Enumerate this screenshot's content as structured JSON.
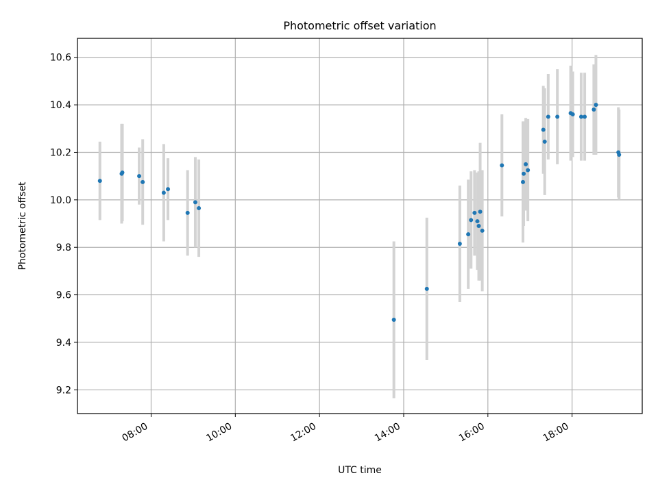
{
  "chart_data": {
    "type": "scatter",
    "title": "Photometric offset variation",
    "xlabel": "UTC time",
    "ylabel": "Photometric offset",
    "x_ticks": [
      "08:00",
      "10:00",
      "12:00",
      "14:00",
      "16:00",
      "18:00"
    ],
    "y_ticks": [
      "9.2",
      "9.4",
      "9.6",
      "9.8",
      "10.0",
      "10.2",
      "10.4",
      "10.6"
    ],
    "xlim": [
      "06:15",
      "19:40"
    ],
    "ylim": [
      9.1,
      10.68
    ],
    "grid": true,
    "point_color": "#1f77b4",
    "errorbar_color": "#d3d3d3",
    "points": [
      {
        "t": "06:47",
        "y": 10.08,
        "err": 0.165
      },
      {
        "t": "07:18",
        "y": 10.11,
        "err": 0.21
      },
      {
        "t": "07:19",
        "y": 10.115,
        "err": 0.205
      },
      {
        "t": "07:43",
        "y": 10.1,
        "err": 0.12
      },
      {
        "t": "07:48",
        "y": 10.075,
        "err": 0.18
      },
      {
        "t": "08:18",
        "y": 10.03,
        "err": 0.205
      },
      {
        "t": "08:24",
        "y": 10.045,
        "err": 0.13
      },
      {
        "t": "08:52",
        "y": 9.945,
        "err": 0.18
      },
      {
        "t": "09:03",
        "y": 9.99,
        "err": 0.19
      },
      {
        "t": "09:08",
        "y": 9.965,
        "err": 0.205
      },
      {
        "t": "13:46",
        "y": 9.495,
        "err": 0.33
      },
      {
        "t": "14:33",
        "y": 9.625,
        "err": 0.3
      },
      {
        "t": "15:20",
        "y": 9.815,
        "err": 0.245
      },
      {
        "t": "15:32",
        "y": 9.855,
        "err": 0.23
      },
      {
        "t": "15:36",
        "y": 9.915,
        "err": 0.205
      },
      {
        "t": "15:41",
        "y": 9.945,
        "err": 0.18
      },
      {
        "t": "15:45",
        "y": 9.91,
        "err": 0.205
      },
      {
        "t": "15:47",
        "y": 9.89,
        "err": 0.23
      },
      {
        "t": "15:49",
        "y": 9.95,
        "err": 0.29
      },
      {
        "t": "15:52",
        "y": 9.87,
        "err": 0.255
      },
      {
        "t": "16:20",
        "y": 10.145,
        "err": 0.215
      },
      {
        "t": "16:50",
        "y": 10.075,
        "err": 0.255
      },
      {
        "t": "16:51",
        "y": 10.11,
        "err": 0.22
      },
      {
        "t": "16:54",
        "y": 10.15,
        "err": 0.195
      },
      {
        "t": "16:57",
        "y": 10.125,
        "err": 0.215
      },
      {
        "t": "17:19",
        "y": 10.295,
        "err": 0.185
      },
      {
        "t": "17:21",
        "y": 10.245,
        "err": 0.225
      },
      {
        "t": "17:26",
        "y": 10.35,
        "err": 0.18
      },
      {
        "t": "17:39",
        "y": 10.35,
        "err": 0.2
      },
      {
        "t": "17:58",
        "y": 10.365,
        "err": 0.2
      },
      {
        "t": "18:01",
        "y": 10.36,
        "err": 0.18
      },
      {
        "t": "18:13",
        "y": 10.35,
        "err": 0.185
      },
      {
        "t": "18:18",
        "y": 10.35,
        "err": 0.185
      },
      {
        "t": "18:31",
        "y": 10.38,
        "err": 0.19
      },
      {
        "t": "18:34",
        "y": 10.4,
        "err": 0.21
      },
      {
        "t": "19:06",
        "y": 10.2,
        "err": 0.19
      },
      {
        "t": "19:07",
        "y": 10.19,
        "err": 0.19
      }
    ]
  }
}
